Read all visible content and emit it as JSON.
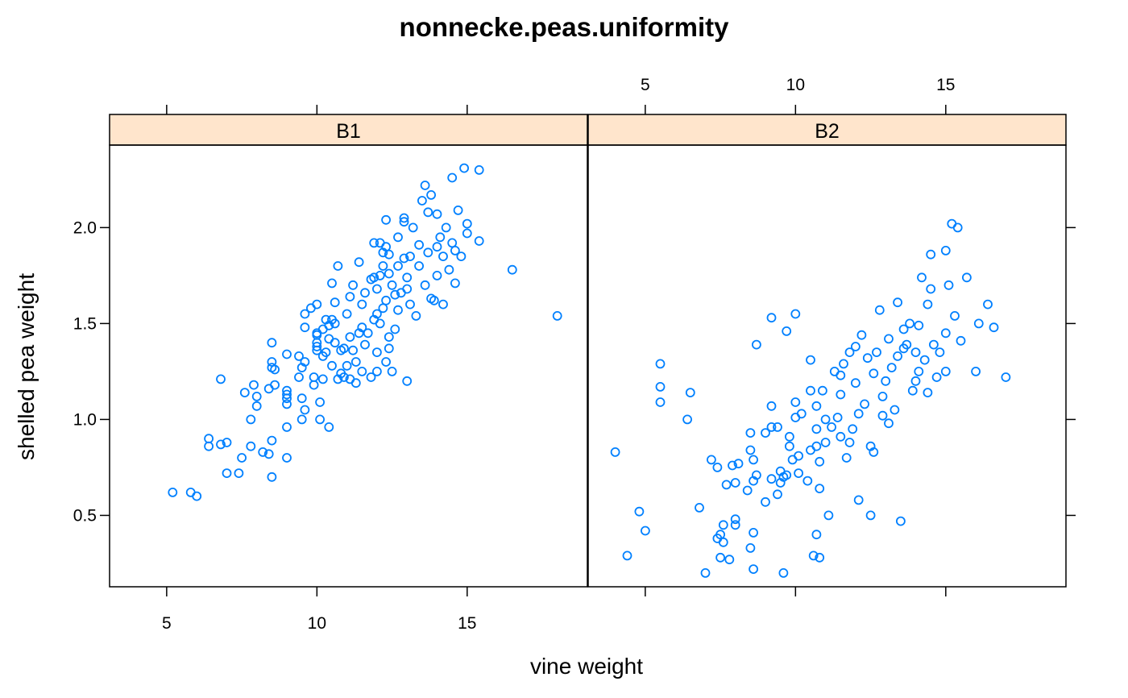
{
  "chart_data": {
    "type": "scatter",
    "title": "nonnecke.peas.uniformity",
    "xlabel": "vine weight",
    "ylabel": "shelled pea weight",
    "xlim": [
      3.1,
      19.0
    ],
    "ylim": [
      0.128,
      2.43
    ],
    "x_ticks": [
      5,
      10,
      15
    ],
    "y_ticks": [
      0.5,
      1.0,
      1.5,
      2.0
    ],
    "y_tick_labels": [
      "0.5",
      "1.0",
      "1.5",
      "2.0"
    ],
    "grid": false,
    "point_color": "#0080ff",
    "strip_color": "#ffe5cc",
    "panels": [
      {
        "name": "B1",
        "points": [
          [
            5.2,
            0.62
          ],
          [
            5.8,
            0.62
          ],
          [
            6.0,
            0.6
          ],
          [
            6.4,
            0.9
          ],
          [
            6.4,
            0.86
          ],
          [
            6.8,
            0.87
          ],
          [
            6.8,
            1.21
          ],
          [
            7.0,
            0.88
          ],
          [
            7.0,
            0.72
          ],
          [
            7.4,
            0.72
          ],
          [
            7.5,
            0.8
          ],
          [
            7.6,
            1.14
          ],
          [
            7.8,
            1.0
          ],
          [
            7.8,
            0.86
          ],
          [
            7.9,
            1.18
          ],
          [
            8.0,
            1.07
          ],
          [
            8.0,
            1.12
          ],
          [
            8.2,
            0.83
          ],
          [
            8.4,
            0.82
          ],
          [
            8.4,
            1.16
          ],
          [
            8.5,
            1.27
          ],
          [
            8.5,
            1.3
          ],
          [
            8.5,
            1.4
          ],
          [
            8.5,
            0.7
          ],
          [
            8.6,
            1.18
          ],
          [
            8.6,
            1.26
          ],
          [
            8.5,
            0.89
          ],
          [
            9.0,
            1.08
          ],
          [
            9.0,
            1.13
          ],
          [
            9.0,
            1.11
          ],
          [
            9.0,
            1.15
          ],
          [
            9.0,
            0.96
          ],
          [
            9.0,
            0.8
          ],
          [
            9.0,
            1.34
          ],
          [
            9.4,
            1.22
          ],
          [
            9.4,
            1.33
          ],
          [
            9.5,
            1.0
          ],
          [
            9.5,
            1.27
          ],
          [
            9.5,
            1.11
          ],
          [
            9.6,
            1.3
          ],
          [
            9.6,
            1.05
          ],
          [
            9.6,
            1.48
          ],
          [
            9.6,
            1.55
          ],
          [
            9.8,
            1.58
          ],
          [
            9.9,
            1.18
          ],
          [
            9.9,
            1.22
          ],
          [
            10.0,
            1.36
          ],
          [
            10.0,
            1.4
          ],
          [
            10.0,
            1.44
          ],
          [
            10.0,
            1.45
          ],
          [
            10.0,
            1.38
          ],
          [
            10.0,
            1.6
          ],
          [
            10.1,
            1.0
          ],
          [
            10.1,
            1.09
          ],
          [
            10.2,
            1.21
          ],
          [
            10.2,
            1.33
          ],
          [
            10.3,
            1.52
          ],
          [
            10.3,
            1.35
          ],
          [
            10.4,
            1.42
          ],
          [
            10.4,
            0.96
          ],
          [
            10.4,
            1.49
          ],
          [
            10.5,
            1.28
          ],
          [
            10.5,
            1.52
          ],
          [
            10.5,
            1.71
          ],
          [
            10.6,
            1.61
          ],
          [
            10.6,
            1.4
          ],
          [
            10.6,
            1.5
          ],
          [
            10.7,
            1.8
          ],
          [
            10.7,
            1.21
          ],
          [
            10.8,
            1.24
          ],
          [
            10.8,
            1.36
          ],
          [
            10.9,
            1.37
          ],
          [
            10.9,
            1.22
          ],
          [
            11.0,
            1.28
          ],
          [
            11.0,
            1.55
          ],
          [
            11.1,
            1.64
          ],
          [
            11.1,
            1.43
          ],
          [
            11.1,
            1.21
          ],
          [
            11.2,
            1.7
          ],
          [
            11.2,
            1.36
          ],
          [
            11.3,
            1.19
          ],
          [
            11.3,
            1.3
          ],
          [
            11.4,
            1.45
          ],
          [
            11.4,
            1.82
          ],
          [
            11.5,
            1.48
          ],
          [
            11.5,
            1.6
          ],
          [
            11.5,
            1.25
          ],
          [
            11.6,
            1.66
          ],
          [
            11.6,
            1.39
          ],
          [
            11.7,
            1.45
          ],
          [
            11.8,
            1.22
          ],
          [
            11.8,
            1.73
          ],
          [
            11.9,
            1.74
          ],
          [
            11.9,
            1.52
          ],
          [
            12.0,
            1.55
          ],
          [
            12.0,
            1.68
          ],
          [
            12.0,
            1.35
          ],
          [
            12.1,
            1.92
          ],
          [
            12.1,
            1.5
          ],
          [
            12.1,
            1.75
          ],
          [
            12.2,
            1.8
          ],
          [
            12.2,
            1.58
          ],
          [
            12.3,
            1.9
          ],
          [
            12.3,
            1.62
          ],
          [
            12.3,
            1.3
          ],
          [
            12.4,
            1.37
          ],
          [
            12.4,
            1.43
          ],
          [
            12.4,
            1.76
          ],
          [
            12.4,
            1.86
          ],
          [
            12.5,
            1.25
          ],
          [
            12.5,
            1.7
          ],
          [
            12.6,
            1.65
          ],
          [
            12.6,
            1.47
          ],
          [
            12.7,
            1.8
          ],
          [
            12.7,
            1.95
          ],
          [
            12.7,
            1.57
          ],
          [
            12.8,
            1.66
          ],
          [
            12.9,
            1.84
          ],
          [
            12.9,
            2.03
          ],
          [
            13.0,
            1.68
          ],
          [
            13.0,
            1.74
          ],
          [
            13.1,
            1.6
          ],
          [
            13.1,
            1.85
          ],
          [
            13.2,
            2.0
          ],
          [
            13.3,
            1.54
          ],
          [
            13.4,
            1.91
          ],
          [
            13.4,
            1.8
          ],
          [
            13.5,
            2.14
          ],
          [
            13.6,
            1.7
          ],
          [
            13.7,
            1.87
          ],
          [
            13.7,
            2.08
          ],
          [
            13.8,
            1.63
          ],
          [
            13.8,
            2.17
          ],
          [
            13.9,
            1.62
          ],
          [
            14.0,
            1.75
          ],
          [
            14.0,
            1.9
          ],
          [
            14.0,
            2.07
          ],
          [
            14.1,
            1.95
          ],
          [
            14.2,
            1.6
          ],
          [
            14.2,
            1.85
          ],
          [
            14.3,
            2.0
          ],
          [
            14.4,
            1.78
          ],
          [
            14.5,
            1.92
          ],
          [
            14.5,
            2.26
          ],
          [
            14.6,
            1.71
          ],
          [
            14.6,
            1.88
          ],
          [
            14.7,
            2.09
          ],
          [
            14.8,
            1.85
          ],
          [
            14.9,
            2.31
          ],
          [
            15.0,
            1.97
          ],
          [
            15.0,
            2.02
          ],
          [
            15.4,
            2.3
          ],
          [
            15.4,
            1.93
          ],
          [
            16.5,
            1.78
          ],
          [
            18.0,
            1.54
          ],
          [
            13.0,
            1.2
          ],
          [
            12.0,
            1.25
          ],
          [
            12.3,
            2.04
          ],
          [
            12.9,
            2.05
          ],
          [
            13.6,
            2.22
          ],
          [
            11.9,
            1.92
          ],
          [
            12.2,
            1.87
          ],
          [
            10.2,
            1.47
          ]
        ]
      },
      {
        "name": "B2",
        "points": [
          [
            4.0,
            0.83
          ],
          [
            4.4,
            0.29
          ],
          [
            4.8,
            0.52
          ],
          [
            5.0,
            0.42
          ],
          [
            5.5,
            1.29
          ],
          [
            5.5,
            1.17
          ],
          [
            5.5,
            1.09
          ],
          [
            6.4,
            1.0
          ],
          [
            6.5,
            1.14
          ],
          [
            6.8,
            0.54
          ],
          [
            7.0,
            0.2
          ],
          [
            7.2,
            0.79
          ],
          [
            7.4,
            0.75
          ],
          [
            7.4,
            0.38
          ],
          [
            7.5,
            0.28
          ],
          [
            7.5,
            0.4
          ],
          [
            7.6,
            0.36
          ],
          [
            7.6,
            0.45
          ],
          [
            7.7,
            0.66
          ],
          [
            7.8,
            0.27
          ],
          [
            7.9,
            0.76
          ],
          [
            8.0,
            0.45
          ],
          [
            8.0,
            0.48
          ],
          [
            8.0,
            0.67
          ],
          [
            8.1,
            0.77
          ],
          [
            8.4,
            0.63
          ],
          [
            8.5,
            0.33
          ],
          [
            8.5,
            0.84
          ],
          [
            8.5,
            0.93
          ],
          [
            8.6,
            0.68
          ],
          [
            8.6,
            0.79
          ],
          [
            8.6,
            0.22
          ],
          [
            8.6,
            0.41
          ],
          [
            8.7,
            1.39
          ],
          [
            8.7,
            0.71
          ],
          [
            9.0,
            0.57
          ],
          [
            9.0,
            0.93
          ],
          [
            9.2,
            0.96
          ],
          [
            9.2,
            0.69
          ],
          [
            9.2,
            1.07
          ],
          [
            9.2,
            1.53
          ],
          [
            9.4,
            0.61
          ],
          [
            9.4,
            0.96
          ],
          [
            9.5,
            0.73
          ],
          [
            9.5,
            0.67
          ],
          [
            9.6,
            0.7
          ],
          [
            9.6,
            0.2
          ],
          [
            9.7,
            1.46
          ],
          [
            9.7,
            0.71
          ],
          [
            9.8,
            0.86
          ],
          [
            9.8,
            0.91
          ],
          [
            9.9,
            0.79
          ],
          [
            10.0,
            1.55
          ],
          [
            10.0,
            1.09
          ],
          [
            10.0,
            1.01
          ],
          [
            10.1,
            0.72
          ],
          [
            10.1,
            0.81
          ],
          [
            10.2,
            1.03
          ],
          [
            10.4,
            0.68
          ],
          [
            10.5,
            0.84
          ],
          [
            10.5,
            1.15
          ],
          [
            10.5,
            1.31
          ],
          [
            10.6,
            0.29
          ],
          [
            10.7,
            0.4
          ],
          [
            10.7,
            0.86
          ],
          [
            10.7,
            0.95
          ],
          [
            10.7,
            1.07
          ],
          [
            10.8,
            0.64
          ],
          [
            10.8,
            0.78
          ],
          [
            10.8,
            0.28
          ],
          [
            10.9,
            1.15
          ],
          [
            11.0,
            0.88
          ],
          [
            11.0,
            1.0
          ],
          [
            11.1,
            0.5
          ],
          [
            11.2,
            0.96
          ],
          [
            11.3,
            1.25
          ],
          [
            11.4,
            1.01
          ],
          [
            11.5,
            0.91
          ],
          [
            11.5,
            1.13
          ],
          [
            11.5,
            1.23
          ],
          [
            11.6,
            1.29
          ],
          [
            11.7,
            0.8
          ],
          [
            11.8,
            0.88
          ],
          [
            11.8,
            1.35
          ],
          [
            11.9,
            0.95
          ],
          [
            12.0,
            1.19
          ],
          [
            12.0,
            1.38
          ],
          [
            12.1,
            0.58
          ],
          [
            12.1,
            1.03
          ],
          [
            12.2,
            1.44
          ],
          [
            12.3,
            1.08
          ],
          [
            12.4,
            1.32
          ],
          [
            12.5,
            0.5
          ],
          [
            12.5,
            0.86
          ],
          [
            12.6,
            1.24
          ],
          [
            12.7,
            1.35
          ],
          [
            12.8,
            1.57
          ],
          [
            12.9,
            1.02
          ],
          [
            13.0,
            1.2
          ],
          [
            13.1,
            0.98
          ],
          [
            13.1,
            1.42
          ],
          [
            13.2,
            1.27
          ],
          [
            13.3,
            1.05
          ],
          [
            13.4,
            1.61
          ],
          [
            13.4,
            1.33
          ],
          [
            13.5,
            0.47
          ],
          [
            13.6,
            1.47
          ],
          [
            13.7,
            1.39
          ],
          [
            13.8,
            1.5
          ],
          [
            13.9,
            1.15
          ],
          [
            14.0,
            1.35
          ],
          [
            14.0,
            1.2
          ],
          [
            14.1,
            1.49
          ],
          [
            14.2,
            1.74
          ],
          [
            14.3,
            1.31
          ],
          [
            14.4,
            1.6
          ],
          [
            14.5,
            1.68
          ],
          [
            14.5,
            1.86
          ],
          [
            14.6,
            1.39
          ],
          [
            14.7,
            1.22
          ],
          [
            15.0,
            1.25
          ],
          [
            15.0,
            1.88
          ],
          [
            15.0,
            1.45
          ],
          [
            15.1,
            1.7
          ],
          [
            15.2,
            2.02
          ],
          [
            15.4,
            2.0
          ],
          [
            15.5,
            1.41
          ],
          [
            15.7,
            1.74
          ],
          [
            16.0,
            1.25
          ],
          [
            16.1,
            1.5
          ],
          [
            16.4,
            1.6
          ],
          [
            16.6,
            1.48
          ],
          [
            17.0,
            1.22
          ],
          [
            14.4,
            1.14
          ],
          [
            14.1,
            1.25
          ],
          [
            12.9,
            1.12
          ],
          [
            13.6,
            1.37
          ],
          [
            15.3,
            1.54
          ],
          [
            14.8,
            1.35
          ],
          [
            12.6,
            0.83
          ]
        ]
      }
    ]
  }
}
